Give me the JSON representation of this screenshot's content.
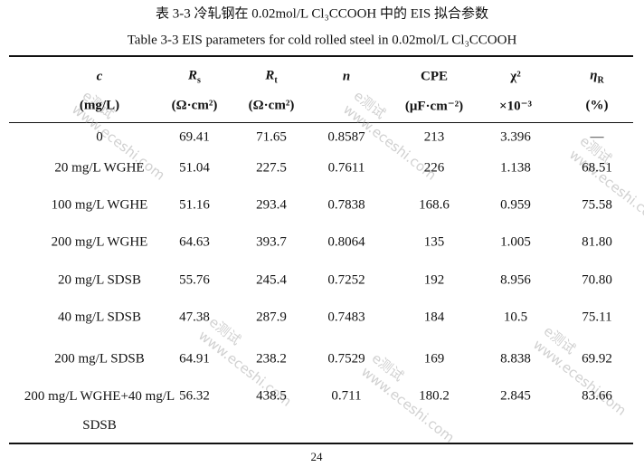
{
  "caption_cn": "表 3-3 冷轧钢在 0.02mol/L Cl₃CCOOH 中的 EIS 拟合参数",
  "caption_en": "Table 3-3   EIS parameters for cold rolled steel in 0.02mol/L Cl₃CCOOH",
  "table": {
    "columns": [
      {
        "symbol": "c",
        "unit": "(mg/L)"
      },
      {
        "symbol": "R",
        "sub": "s",
        "unit": "(Ω·cm²)"
      },
      {
        "symbol": "R",
        "sub": "t",
        "unit": "(Ω·cm²)"
      },
      {
        "symbol": "n"
      },
      {
        "symbol": "CPE",
        "unit": "(μF·cm⁻²)"
      },
      {
        "symbol": "χ²",
        "unit": "×10⁻³"
      },
      {
        "symbol": "η",
        "sub": "R",
        "unit": "(%)"
      }
    ],
    "rows": [
      [
        "0",
        "69.41",
        "71.65",
        "0.8587",
        "213",
        "3.396",
        "—"
      ],
      [
        "20 mg/L WGHE",
        "51.04",
        "227.5",
        "0.7611",
        "226",
        "1.138",
        "68.51"
      ],
      [
        "100 mg/L WGHE",
        "51.16",
        "293.4",
        "0.7838",
        "168.6",
        "0.959",
        "75.58"
      ],
      [
        "200 mg/L WGHE",
        "64.63",
        "393.7",
        "0.8064",
        "135",
        "1.005",
        "81.80"
      ],
      [
        "20 mg/L SDSB",
        "55.76",
        "245.4",
        "0.7252",
        "192",
        "8.956",
        "70.80"
      ],
      [
        "40 mg/L SDSB",
        "47.38",
        "287.9",
        "0.7483",
        "184",
        "10.5",
        "75.11"
      ],
      [
        "200 mg/L SDSB",
        "64.91",
        "238.2",
        "0.7529",
        "169",
        "8.838",
        "69.92"
      ],
      [
        "200 mg/L WGHE+40 mg/L SDSB",
        "56.32",
        "438.5",
        "0.711",
        "180.2",
        "2.845",
        "83.66"
      ]
    ]
  },
  "watermark": {
    "logo": "e测试",
    "url": "www.eceshi.com"
  },
  "page_number": "24"
}
